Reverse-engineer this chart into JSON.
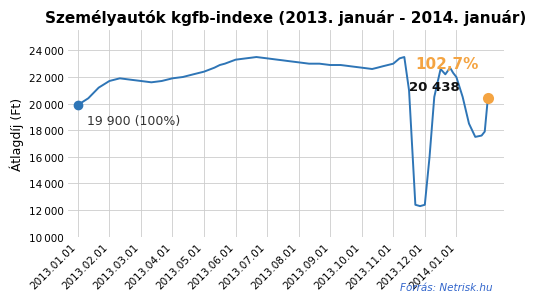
{
  "title": "Személyautók kgfb-indexe (2013. január - 2014. január)",
  "ylabel": "Átlagdíj (Ft)",
  "source": "Forrás: Netrisk.hu",
  "line_color": "#2E75B6",
  "marker_color_start": "#2E75B6",
  "marker_color_end": "#F4A442",
  "annotation_start": "19 900 (100%)",
  "annotation_end": "20 438",
  "annotation_pct": "102,7%",
  "annotation_pct_color": "#F4A442",
  "ylim": [
    10000,
    25500
  ],
  "yticks": [
    10000,
    12000,
    14000,
    16000,
    18000,
    20000,
    22000,
    24000
  ],
  "xtick_labels": [
    "2013.01.01",
    "2013.02.01",
    "2013.03.01",
    "2013.04.01",
    "2013.05.01",
    "2013.06.01",
    "2013.07.01",
    "2013.08.01",
    "2013.09.01",
    "2013.10.01",
    "2013.11.01",
    "2013.12.01",
    "2014.01.01"
  ],
  "x_values": [
    0.0,
    0.33,
    0.66,
    1.0,
    1.33,
    1.66,
    2.0,
    2.33,
    2.66,
    3.0,
    3.33,
    3.66,
    4.0,
    4.33,
    4.5,
    4.66,
    5.0,
    5.33,
    5.5,
    5.66,
    6.0,
    6.33,
    6.5,
    6.66,
    7.0,
    7.33,
    7.5,
    7.66,
    8.0,
    8.33,
    8.5,
    8.66,
    9.0,
    9.33,
    9.5,
    9.66,
    10.0,
    10.2,
    10.35,
    10.5,
    10.7,
    10.85,
    11.0,
    11.15,
    11.3,
    11.5,
    11.65,
    11.8,
    11.9,
    12.0,
    12.2,
    12.4,
    12.6,
    12.8,
    12.9,
    13.0
  ],
  "y_values": [
    19900,
    20400,
    21200,
    21700,
    21900,
    21800,
    21700,
    21600,
    21700,
    21900,
    22000,
    22200,
    22400,
    22700,
    22900,
    23000,
    23300,
    23400,
    23450,
    23500,
    23400,
    23300,
    23250,
    23200,
    23100,
    23000,
    23000,
    23000,
    22900,
    22900,
    22850,
    22800,
    22700,
    22600,
    22700,
    22800,
    23000,
    23400,
    23500,
    21000,
    12400,
    12300,
    12400,
    16000,
    20500,
    22600,
    22200,
    22700,
    22300,
    22000,
    20500,
    18500,
    17500,
    17600,
    17900,
    20438
  ],
  "bg_color": "#FFFFFF",
  "grid_color": "#CCCCCC",
  "title_fontsize": 11,
  "label_fontsize": 9,
  "tick_fontsize": 7.5
}
